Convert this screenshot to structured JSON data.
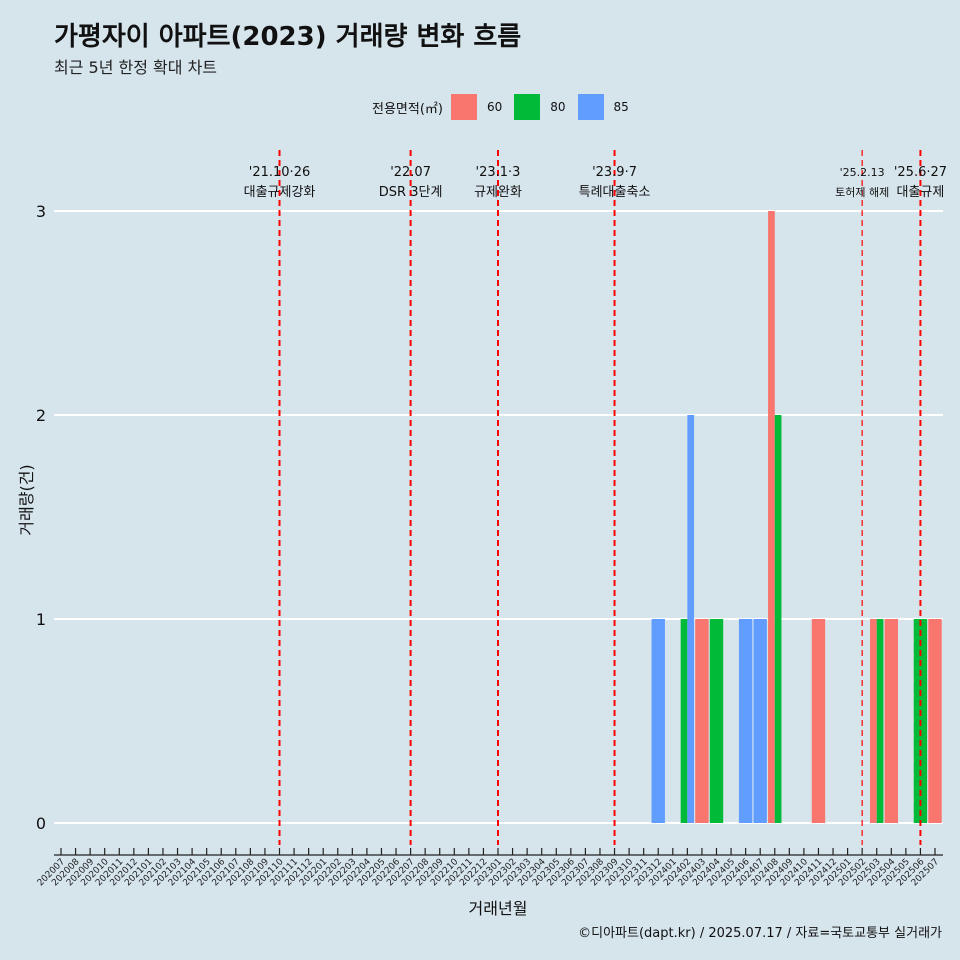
{
  "title": "가평자이 아파트(2023) 거래량 변화 흐름",
  "subtitle": "최근 5년 한정 확대 차트",
  "caption": "©디아파트(dapt.kr) / 2025.07.17 / 자료=국토교통부 실거래가",
  "legend": {
    "title": "전용면적(㎡)",
    "items": [
      {
        "label": "60",
        "color": "#f8766d"
      },
      {
        "label": "80",
        "color": "#00ba38"
      },
      {
        "label": "85",
        "color": "#619cff"
      }
    ]
  },
  "chart_data": {
    "type": "bar",
    "xlabel": "거래년월",
    "ylabel": "거래량(건)",
    "ylim": [
      0,
      3
    ],
    "yticks": [
      0,
      1,
      2,
      3
    ],
    "grid": "horizontal",
    "legend_position": "top",
    "categories": [
      "202007",
      "202008",
      "202009",
      "202010",
      "202011",
      "202012",
      "202101",
      "202102",
      "202103",
      "202104",
      "202105",
      "202106",
      "202107",
      "202108",
      "202109",
      "202110",
      "202111",
      "202112",
      "202201",
      "202202",
      "202203",
      "202204",
      "202205",
      "202206",
      "202207",
      "202208",
      "202209",
      "202210",
      "202211",
      "202212",
      "202301",
      "202302",
      "202303",
      "202304",
      "202305",
      "202306",
      "202307",
      "202308",
      "202309",
      "202310",
      "202311",
      "202312",
      "202401",
      "202402",
      "202403",
      "202404",
      "202405",
      "202406",
      "202407",
      "202408",
      "202409",
      "202410",
      "202411",
      "202412",
      "202501",
      "202502",
      "202503",
      "202504",
      "202505",
      "202506",
      "202507"
    ],
    "series": [
      {
        "name": "60",
        "color": "#f8766d",
        "points": [
          [
            "202403",
            1
          ],
          [
            "202408",
            3
          ],
          [
            "202411",
            1
          ],
          [
            "202503",
            1
          ],
          [
            "202504",
            1
          ],
          [
            "202507",
            1
          ]
        ]
      },
      {
        "name": "80",
        "color": "#00ba38",
        "points": [
          [
            "202402",
            1
          ],
          [
            "202404",
            1
          ],
          [
            "202408",
            2
          ],
          [
            "202503",
            1
          ],
          [
            "202506",
            1
          ]
        ]
      },
      {
        "name": "85",
        "color": "#619cff",
        "points": [
          [
            "202312",
            1
          ],
          [
            "202402",
            2
          ],
          [
            "202406",
            1
          ],
          [
            "202407",
            1
          ]
        ]
      }
    ],
    "events": [
      {
        "x": "202110",
        "date": "'21.10·26",
        "label": "대출규제강화"
      },
      {
        "x": "202207",
        "date": "'22.07",
        "label": "DSR 3단계"
      },
      {
        "x": "202301",
        "date": "'23.1·3",
        "label": "규제완화"
      },
      {
        "x": "202309",
        "date": "'23.9·7",
        "label": "특례대출축소"
      },
      {
        "x": "202502",
        "date": "'25.2.13",
        "label": "토허제 해제"
      },
      {
        "x": "202506",
        "date": "'25.6·27",
        "label": "대출규제"
      }
    ]
  }
}
